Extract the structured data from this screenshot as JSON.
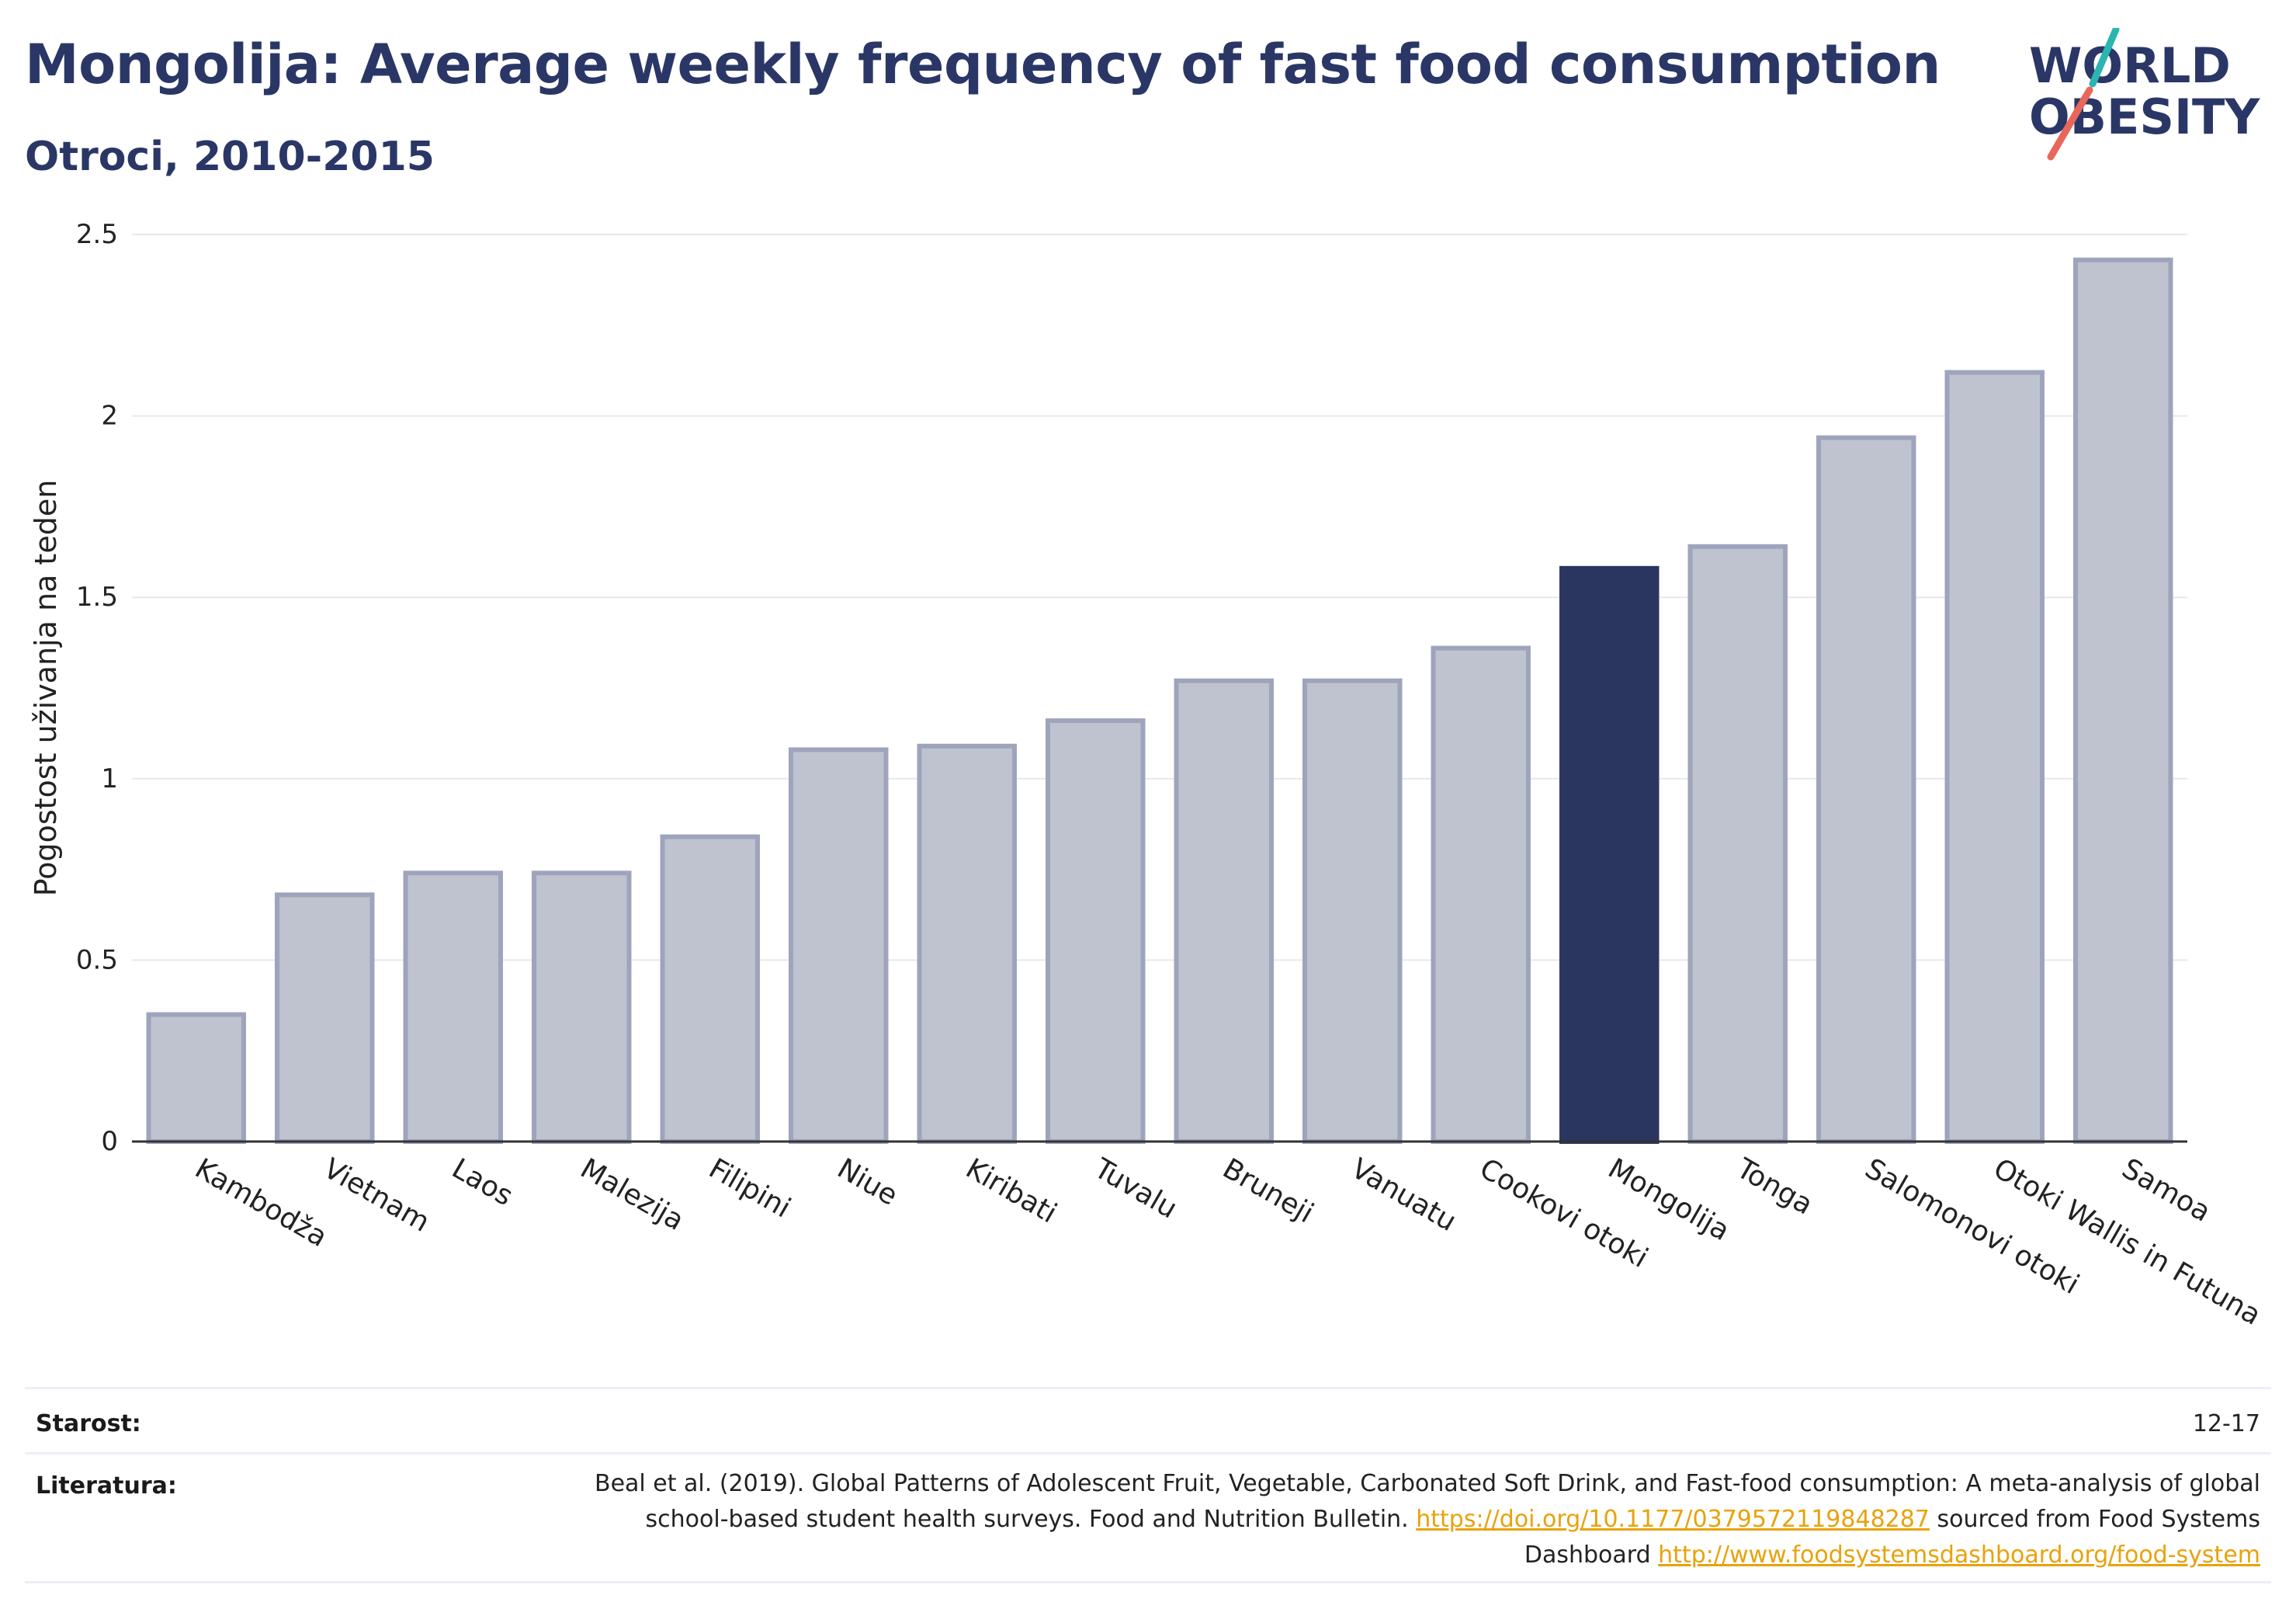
{
  "header": {
    "title": "Mongolija: Average weekly frequency of fast food consumption",
    "subtitle": "Otroci, 2010-2015"
  },
  "logo": {
    "line1": "WORLD",
    "line2": "OBESITY",
    "accent_teal": "#2bb5b0",
    "accent_coral": "#e8675a"
  },
  "chart_data": {
    "type": "bar",
    "categories": [
      "Kambodža",
      "Vietnam",
      "Laos",
      "Malezija",
      "Filipini",
      "Niue",
      "Kiribati",
      "Tuvalu",
      "Bruneji",
      "Vanuatu",
      "Cookovi otoki",
      "Mongolija",
      "Tonga",
      "Salomonovi otoki",
      "Otoki Wallis in Futuna",
      "Samoa"
    ],
    "values": [
      0.35,
      0.68,
      0.74,
      0.74,
      0.84,
      1.08,
      1.09,
      1.16,
      1.27,
      1.27,
      1.36,
      1.58,
      1.64,
      1.94,
      2.12,
      2.43
    ],
    "highlight": "Mongolija",
    "ylabel": "Pogostost uživanja na teden",
    "ylim": [
      0,
      2.5
    ],
    "yticks": [
      "0",
      "0.5",
      "1",
      "1.5",
      "2",
      "2.5"
    ],
    "grid": true,
    "colors": {
      "bar": "#bfc3cf",
      "bar_border": "#9ea4bb",
      "highlight": "#2a3560",
      "grid": "#e6e8ef",
      "axis": "#333333"
    }
  },
  "footer": {
    "age_label": "Starost:",
    "age_value": "12-17",
    "source_label": "Literatura:",
    "source_text_1": "Beal et al. (2019). Global Patterns of Adolescent Fruit, Vegetable, Carbonated Soft Drink, and Fast-food consumption: A meta-analysis of global school-based student health surveys. Food and Nutrition Bulletin. ",
    "source_link_1": "https://doi.org/10.1177/0379572119848287",
    "source_text_2": " sourced from Food Systems Dashboard ",
    "source_link_2": "http://www.foodsystemsdashboard.org/food-system"
  }
}
